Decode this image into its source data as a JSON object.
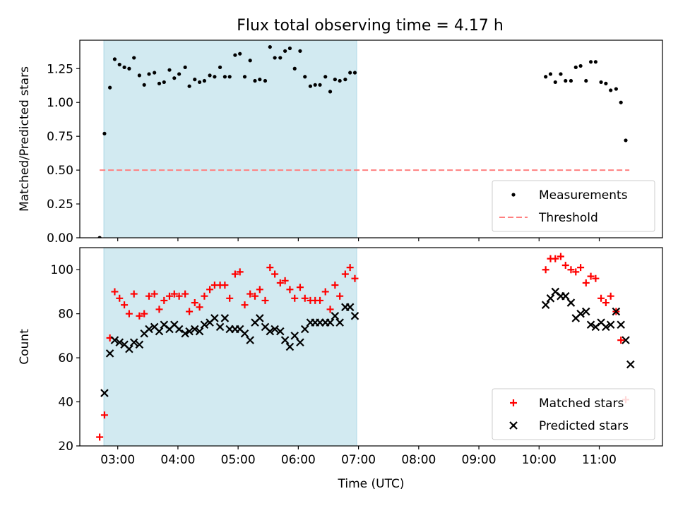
{
  "title": "Flux total observing time = 4.17 h",
  "chart_data": [
    {
      "type": "scatter",
      "ylabel": "Matched/Predicted stars",
      "xlabel": "",
      "ylim": [
        0,
        1.46
      ],
      "yticks": [
        "0.00",
        "0.25",
        "0.50",
        "0.75",
        "1.00",
        "1.25"
      ],
      "ytick_values": [
        0,
        0.25,
        0.5,
        0.75,
        1.0,
        1.25
      ],
      "xlim": [
        2.37,
        12.05
      ],
      "xtick_values": [
        3,
        4,
        5,
        6,
        7,
        8,
        9,
        10,
        11
      ],
      "xticks": [
        "03:00",
        "04:00",
        "05:00",
        "06:00",
        "07:00",
        "08:00",
        "09:00",
        "10:00",
        "11:00"
      ],
      "shaded_region": {
        "x_start": 2.77,
        "x_end": 6.97,
        "color": "#add8e6"
      },
      "threshold": {
        "value": 0.5,
        "x_start": 2.7,
        "x_end": 11.5,
        "color": "#ff8080"
      },
      "legend": {
        "position": "lower-right",
        "entries": [
          "Measurements",
          "Threshold"
        ]
      },
      "series": [
        {
          "name": "Measurements",
          "marker": "dot",
          "color": "#000000",
          "points": [
            [
              2.7,
              0.0
            ],
            [
              2.78,
              0.77
            ],
            [
              2.87,
              1.11
            ],
            [
              2.95,
              1.32
            ],
            [
              3.03,
              1.28
            ],
            [
              3.11,
              1.26
            ],
            [
              3.19,
              1.25
            ],
            [
              3.27,
              1.33
            ],
            [
              3.36,
              1.2
            ],
            [
              3.44,
              1.13
            ],
            [
              3.52,
              1.21
            ],
            [
              3.61,
              1.22
            ],
            [
              3.69,
              1.14
            ],
            [
              3.77,
              1.15
            ],
            [
              3.86,
              1.24
            ],
            [
              3.94,
              1.18
            ],
            [
              4.02,
              1.21
            ],
            [
              4.12,
              1.26
            ],
            [
              4.19,
              1.12
            ],
            [
              4.28,
              1.17
            ],
            [
              4.36,
              1.15
            ],
            [
              4.44,
              1.16
            ],
            [
              4.53,
              1.2
            ],
            [
              4.61,
              1.19
            ],
            [
              4.7,
              1.26
            ],
            [
              4.78,
              1.19
            ],
            [
              4.86,
              1.19
            ],
            [
              4.95,
              1.35
            ],
            [
              5.03,
              1.36
            ],
            [
              5.11,
              1.19
            ],
            [
              5.2,
              1.31
            ],
            [
              5.28,
              1.16
            ],
            [
              5.36,
              1.17
            ],
            [
              5.45,
              1.16
            ],
            [
              5.53,
              1.41
            ],
            [
              5.61,
              1.33
            ],
            [
              5.7,
              1.33
            ],
            [
              5.78,
              1.38
            ],
            [
              5.86,
              1.4
            ],
            [
              5.94,
              1.25
            ],
            [
              6.03,
              1.38
            ],
            [
              6.11,
              1.19
            ],
            [
              6.2,
              1.12
            ],
            [
              6.28,
              1.13
            ],
            [
              6.36,
              1.13
            ],
            [
              6.45,
              1.19
            ],
            [
              6.53,
              1.08
            ],
            [
              6.61,
              1.17
            ],
            [
              6.69,
              1.16
            ],
            [
              6.78,
              1.17
            ],
            [
              6.86,
              1.22
            ],
            [
              6.94,
              1.22
            ],
            [
              10.11,
              1.19
            ],
            [
              10.19,
              1.21
            ],
            [
              10.27,
              1.15
            ],
            [
              10.36,
              1.21
            ],
            [
              10.44,
              1.16
            ],
            [
              10.53,
              1.16
            ],
            [
              10.61,
              1.26
            ],
            [
              10.69,
              1.27
            ],
            [
              10.78,
              1.16
            ],
            [
              10.86,
              1.3
            ],
            [
              10.94,
              1.3
            ],
            [
              11.03,
              1.15
            ],
            [
              11.11,
              1.14
            ],
            [
              11.19,
              1.09
            ],
            [
              11.28,
              1.1
            ],
            [
              11.36,
              1.0
            ],
            [
              11.44,
              0.72
            ]
          ]
        }
      ]
    },
    {
      "type": "scatter",
      "ylabel": "Count",
      "xlabel": "Time (UTC)",
      "ylim": [
        20,
        110
      ],
      "yticks": [
        "20",
        "40",
        "60",
        "80",
        "100"
      ],
      "ytick_values": [
        20,
        40,
        60,
        80,
        100
      ],
      "xlim": [
        2.37,
        12.05
      ],
      "xtick_values": [
        3,
        4,
        5,
        6,
        7,
        8,
        9,
        10,
        11
      ],
      "xticks": [
        "03:00",
        "04:00",
        "05:00",
        "06:00",
        "07:00",
        "08:00",
        "09:00",
        "10:00",
        "11:00"
      ],
      "shaded_region": {
        "x_start": 2.77,
        "x_end": 6.97,
        "color": "#add8e6"
      },
      "legend": {
        "position": "lower-right",
        "entries": [
          "Matched stars",
          "Predicted stars"
        ]
      },
      "series": [
        {
          "name": "Matched stars",
          "marker": "plus",
          "color": "#ff0000",
          "points": [
            [
              2.7,
              24
            ],
            [
              2.78,
              34
            ],
            [
              2.87,
              69
            ],
            [
              2.95,
              90
            ],
            [
              3.03,
              87
            ],
            [
              3.11,
              84
            ],
            [
              3.19,
              80
            ],
            [
              3.27,
              89
            ],
            [
              3.36,
              79
            ],
            [
              3.44,
              80
            ],
            [
              3.52,
              88
            ],
            [
              3.61,
              89
            ],
            [
              3.69,
              82
            ],
            [
              3.77,
              86
            ],
            [
              3.86,
              88
            ],
            [
              3.94,
              89
            ],
            [
              4.02,
              88
            ],
            [
              4.12,
              89
            ],
            [
              4.19,
              81
            ],
            [
              4.28,
              85
            ],
            [
              4.36,
              83
            ],
            [
              4.44,
              88
            ],
            [
              4.53,
              91
            ],
            [
              4.61,
              93
            ],
            [
              4.7,
              93
            ],
            [
              4.78,
              93
            ],
            [
              4.86,
              87
            ],
            [
              4.95,
              98
            ],
            [
              5.03,
              99
            ],
            [
              5.11,
              84
            ],
            [
              5.2,
              89
            ],
            [
              5.28,
              88
            ],
            [
              5.36,
              91
            ],
            [
              5.45,
              86
            ],
            [
              5.53,
              101
            ],
            [
              5.61,
              98
            ],
            [
              5.7,
              94
            ],
            [
              5.78,
              95
            ],
            [
              5.86,
              91
            ],
            [
              5.94,
              87
            ],
            [
              6.03,
              92
            ],
            [
              6.11,
              87
            ],
            [
              6.2,
              86
            ],
            [
              6.28,
              86
            ],
            [
              6.36,
              86
            ],
            [
              6.45,
              90
            ],
            [
              6.53,
              82
            ],
            [
              6.61,
              93
            ],
            [
              6.69,
              88
            ],
            [
              6.78,
              98
            ],
            [
              6.86,
              101
            ],
            [
              6.94,
              96
            ],
            [
              10.11,
              100
            ],
            [
              10.19,
              105
            ],
            [
              10.27,
              105
            ],
            [
              10.36,
              106
            ],
            [
              10.44,
              102
            ],
            [
              10.53,
              100
            ],
            [
              10.61,
              99
            ],
            [
              10.69,
              101
            ],
            [
              10.78,
              94
            ],
            [
              10.86,
              97
            ],
            [
              10.94,
              96
            ],
            [
              11.03,
              87
            ],
            [
              11.11,
              85
            ],
            [
              11.19,
              88
            ],
            [
              11.28,
              81
            ],
            [
              11.36,
              68
            ],
            [
              11.44,
              41
            ]
          ]
        },
        {
          "name": "Predicted stars",
          "marker": "x",
          "color": "#000000",
          "points": [
            [
              2.78,
              44
            ],
            [
              2.87,
              62
            ],
            [
              2.95,
              68
            ],
            [
              3.03,
              67
            ],
            [
              3.11,
              66
            ],
            [
              3.19,
              64
            ],
            [
              3.27,
              67
            ],
            [
              3.36,
              66
            ],
            [
              3.44,
              71
            ],
            [
              3.52,
              73
            ],
            [
              3.61,
              74
            ],
            [
              3.69,
              72
            ],
            [
              3.77,
              75
            ],
            [
              3.86,
              73
            ],
            [
              3.94,
              75
            ],
            [
              4.02,
              73
            ],
            [
              4.12,
              71
            ],
            [
              4.19,
              72
            ],
            [
              4.28,
              73
            ],
            [
              4.36,
              72
            ],
            [
              4.44,
              75
            ],
            [
              4.53,
              76
            ],
            [
              4.61,
              78
            ],
            [
              4.7,
              74
            ],
            [
              4.78,
              78
            ],
            [
              4.86,
              73
            ],
            [
              4.95,
              73
            ],
            [
              5.03,
              73
            ],
            [
              5.11,
              71
            ],
            [
              5.2,
              68
            ],
            [
              5.28,
              76
            ],
            [
              5.36,
              78
            ],
            [
              5.45,
              74
            ],
            [
              5.53,
              72
            ],
            [
              5.61,
              73
            ],
            [
              5.7,
              72
            ],
            [
              5.78,
              68
            ],
            [
              5.86,
              65
            ],
            [
              5.94,
              70
            ],
            [
              6.03,
              67
            ],
            [
              6.11,
              73
            ],
            [
              6.2,
              76
            ],
            [
              6.28,
              76
            ],
            [
              6.36,
              76
            ],
            [
              6.45,
              76
            ],
            [
              6.53,
              76
            ],
            [
              6.61,
              79
            ],
            [
              6.69,
              76
            ],
            [
              6.78,
              83
            ],
            [
              6.86,
              83
            ],
            [
              6.94,
              79
            ],
            [
              10.11,
              84
            ],
            [
              10.19,
              87
            ],
            [
              10.27,
              90
            ],
            [
              10.36,
              88
            ],
            [
              10.44,
              88
            ],
            [
              10.53,
              85
            ],
            [
              10.61,
              78
            ],
            [
              10.69,
              80
            ],
            [
              10.78,
              81
            ],
            [
              10.86,
              75
            ],
            [
              10.94,
              74
            ],
            [
              11.03,
              76
            ],
            [
              11.11,
              74
            ],
            [
              11.19,
              75
            ],
            [
              11.28,
              81
            ],
            [
              11.36,
              75
            ],
            [
              11.44,
              68
            ],
            [
              11.52,
              57
            ]
          ]
        }
      ]
    }
  ]
}
